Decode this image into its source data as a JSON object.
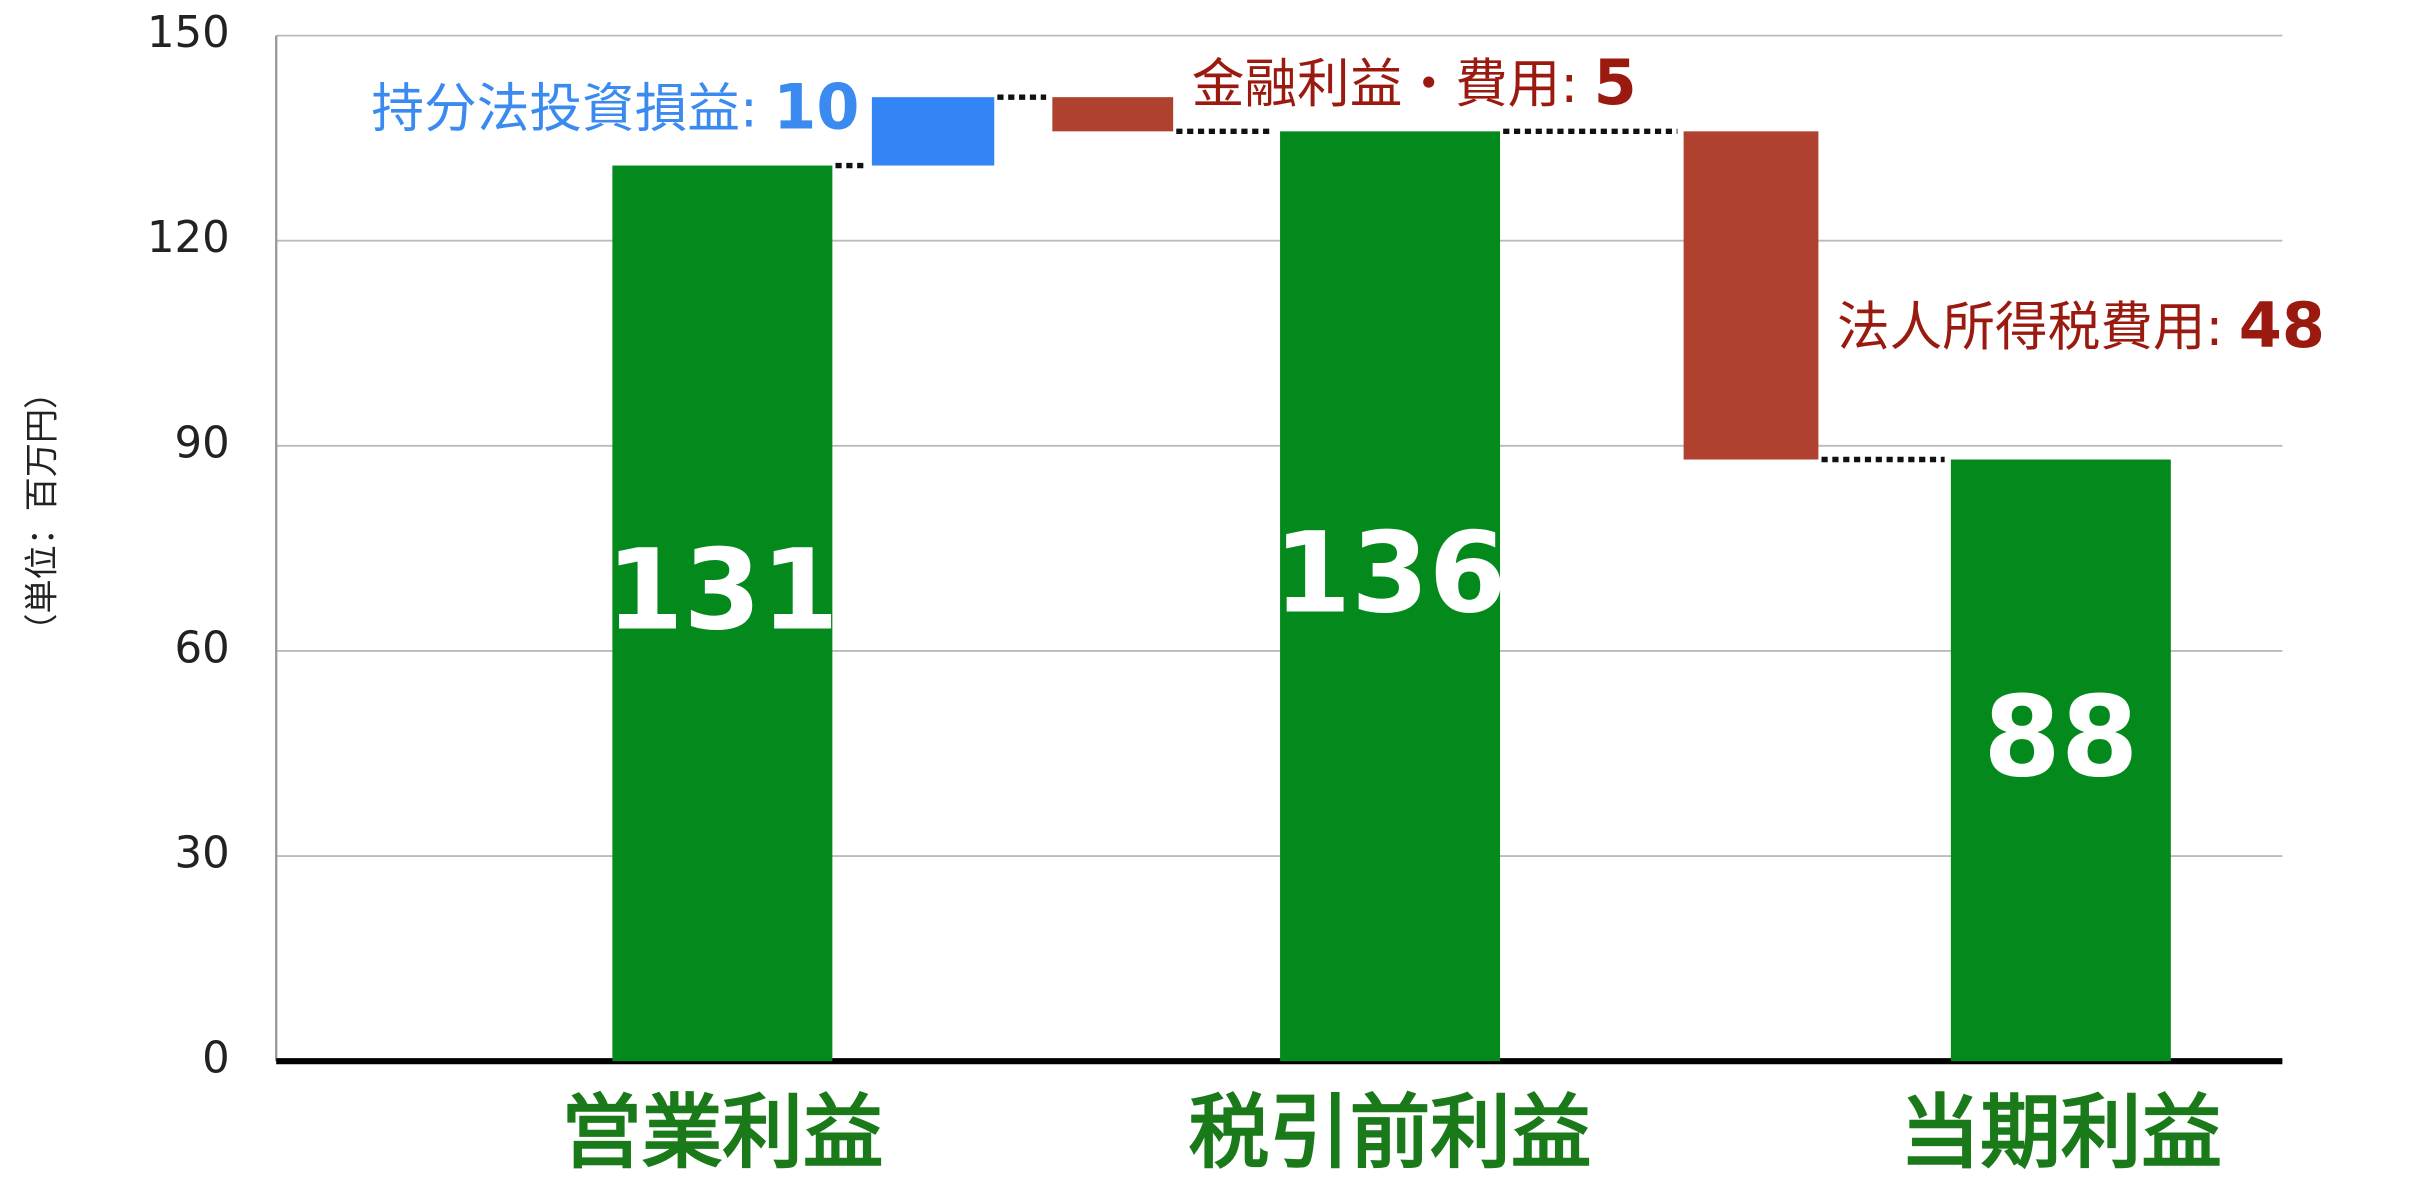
{
  "chart_data": {
    "type": "waterfall",
    "ylabel": "（単位：百万円）",
    "categories": [
      "営業利益",
      "持分法投資損益:",
      "金融利益・費用:",
      "税引前利益",
      "法人所得税費用:",
      "当期利益"
    ],
    "values": [
      131,
      10,
      -5,
      136,
      -48,
      88
    ],
    "value_labels": [
      "131",
      "10",
      "5",
      "136",
      "48",
      "88"
    ],
    "totals": [
      true,
      false,
      false,
      true,
      false,
      true
    ],
    "colors": [
      "#048a1c",
      "#3384f5",
      "#b1412f",
      "#048a1c",
      "#b1412f",
      "#048a1c"
    ],
    "ylim": [
      0,
      150
    ],
    "yticks": [
      0,
      30,
      60,
      90,
      120,
      150
    ],
    "grid": true
  }
}
